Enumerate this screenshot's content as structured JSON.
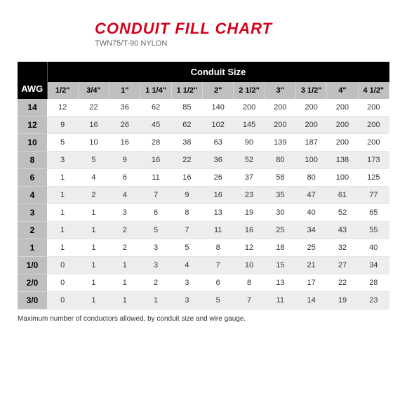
{
  "header": {
    "title": "CONDUIT FILL CHART",
    "title_color": "#d6001c",
    "title_fontsize": 22,
    "subtitle": "TWN75/T-90 NYLON",
    "subtitle_color": "#666666",
    "subtitle_fontsize": 11
  },
  "table": {
    "type": "table",
    "awg_header": "AWG",
    "size_group_header": "Conduit Size",
    "columns": [
      "1/2\"",
      "3/4\"",
      "1\"",
      "1 1/4\"",
      "1 1/2\"",
      "2\"",
      "2 1/2\"",
      "3\"",
      "3 1/2\"",
      "4\"",
      "4 1/2\""
    ],
    "awg_labels": [
      "14",
      "12",
      "10",
      "8",
      "6",
      "4",
      "3",
      "2",
      "1",
      "1/0",
      "2/0",
      "3/0"
    ],
    "rows": [
      [
        12,
        22,
        36,
        62,
        85,
        140,
        200,
        200,
        200,
        200,
        200
      ],
      [
        9,
        16,
        26,
        45,
        62,
        102,
        145,
        200,
        200,
        200,
        200
      ],
      [
        5,
        10,
        16,
        28,
        38,
        63,
        90,
        139,
        187,
        200,
        200
      ],
      [
        3,
        5,
        9,
        16,
        22,
        36,
        52,
        80,
        100,
        138,
        173
      ],
      [
        1,
        4,
        6,
        11,
        16,
        26,
        37,
        58,
        80,
        100,
        125
      ],
      [
        1,
        2,
        4,
        7,
        9,
        16,
        23,
        35,
        47,
        61,
        77
      ],
      [
        1,
        1,
        3,
        6,
        8,
        13,
        19,
        30,
        40,
        52,
        65
      ],
      [
        1,
        1,
        2,
        5,
        7,
        11,
        16,
        25,
        34,
        43,
        55
      ],
      [
        1,
        1,
        2,
        3,
        5,
        8,
        12,
        18,
        25,
        32,
        40
      ],
      [
        0,
        1,
        1,
        3,
        4,
        7,
        10,
        15,
        21,
        27,
        34
      ],
      [
        0,
        1,
        1,
        2,
        3,
        6,
        8,
        13,
        17,
        22,
        28
      ],
      [
        0,
        1,
        1,
        1,
        3,
        5,
        7,
        11,
        14,
        19,
        23
      ]
    ],
    "header_bg": "#000000",
    "header_fg": "#ffffff",
    "subheader_bg": "#bfbfbf",
    "row_odd_bg": "#ffffff",
    "row_even_bg": "#ededed",
    "awg_col_bg": "#bfbfbf"
  },
  "footnote": "Maximum number of conductors allowed, by conduit size and wire gauge."
}
